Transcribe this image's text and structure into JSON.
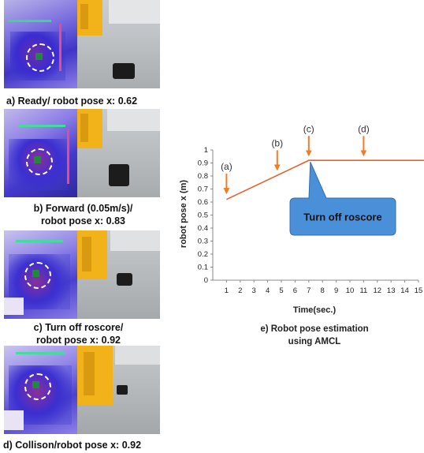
{
  "panels": [
    {
      "caption_lines": [
        "a) Ready/ robot pose x: 0.62"
      ]
    },
    {
      "caption_lines": [
        "b) Forward (0.05m/s)/",
        "robot pose x: 0.83"
      ]
    },
    {
      "caption_lines": [
        "c) Turn off roscore/",
        "robot pose x: 0.92"
      ]
    },
    {
      "caption_lines": [
        "d) Collison/robot pose x: 0.92"
      ]
    }
  ],
  "callout": "Turn off roscore",
  "chart_caption_lines": [
    "e) Robot pose estimation",
    "using AMCL"
  ],
  "colors": {
    "line": "#e8602c",
    "arrow": "#f07c24",
    "callout_fill": "#4a90d9",
    "callout_stroke": "#2f6db5"
  },
  "chart_data": {
    "type": "line",
    "xlabel": "Time(sec.)",
    "ylabel": "robot pose x (m)",
    "x_ticks": [
      1,
      2,
      3,
      4,
      5,
      6,
      7,
      8,
      9,
      10,
      11,
      12,
      13,
      14,
      15
    ],
    "y_ticks": [
      0,
      0.1,
      0.2,
      0.3,
      0.4,
      0.5,
      0.6,
      0.7,
      0.8,
      0.9,
      1
    ],
    "xlim": [
      0,
      15
    ],
    "ylim": [
      0,
      1
    ],
    "grid": false,
    "series": [
      {
        "x": [
          1,
          7,
          15.4
        ],
        "y": [
          0.62,
          0.92,
          0.92
        ]
      }
    ],
    "annotations": [
      {
        "label": "(a)",
        "x": 1.0,
        "y": 0.66
      },
      {
        "label": "(b)",
        "x": 4.7,
        "y": 0.84
      },
      {
        "label": "(c)",
        "x": 7.0,
        "y": 0.95
      },
      {
        "label": "(d)",
        "x": 11.0,
        "y": 0.95
      }
    ]
  }
}
